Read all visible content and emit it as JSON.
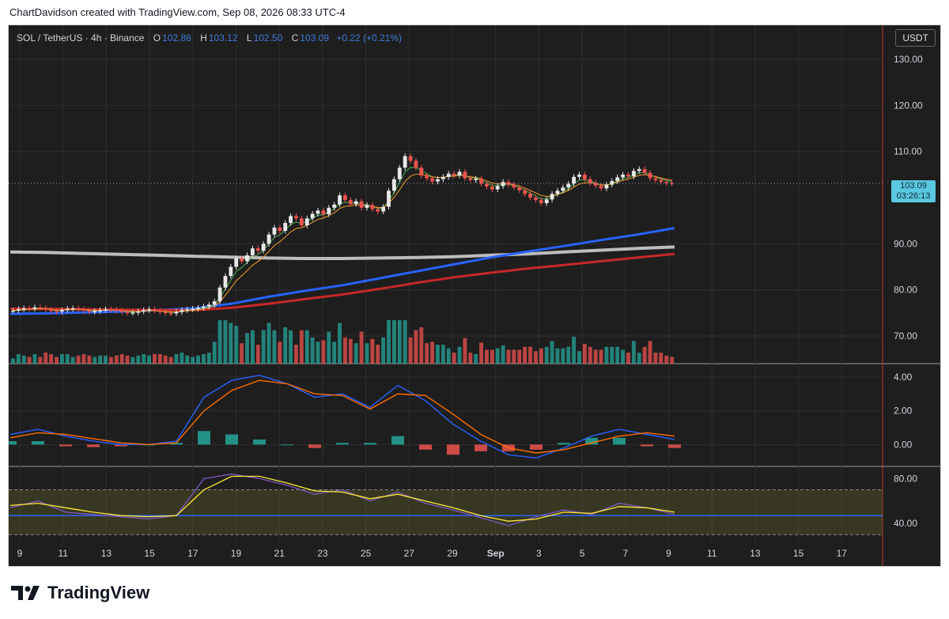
{
  "header": {
    "attribution": "ChartDavidson created with TradingView.com, Sep 08, 2026 08:33 UTC-4"
  },
  "legend": {
    "symbol": "SOL / TetherUS · 4h · Binance",
    "open_label": "O",
    "open": "102.88",
    "high_label": "H",
    "high": "103.12",
    "low_label": "L",
    "low": "102.50",
    "close_label": "C",
    "close": "103.09",
    "change": "+0.22 (+0.21%)"
  },
  "price_scale": {
    "unit": "USDT",
    "last_price": "103.09",
    "countdown": "03:26:13"
  },
  "brand": {
    "name": "TradingView"
  },
  "colors": {
    "background": "#1e1e1e",
    "up_candle": "#e8e8e8",
    "down_candle": "#ef5350",
    "ema_fast": "#f0a030",
    "ema_mid": "#4caf50",
    "ma_blue": "#2962ff",
    "ma_red": "#c62828",
    "ma_white": "#bdbdbd",
    "macd_line": "#2962ff",
    "signal_line": "#ff6d00",
    "rsi_line": "#7e57c2",
    "rsi_ma": "#ffeb3b",
    "volume_up": "#26a69a",
    "volume_down": "#ef5350",
    "accent_price": "#5ac8e0"
  },
  "chart_data": {
    "type": "line",
    "x_ticks": [
      "9",
      "11",
      "13",
      "15",
      "17",
      "19",
      "21",
      "23",
      "25",
      "27",
      "29",
      "Sep",
      "3",
      "5",
      "7",
      "9",
      "11",
      "13",
      "15",
      "17"
    ],
    "price_pane": {
      "y_ticks": [
        "130.00",
        "120.00",
        "110.00",
        "90.00",
        "80.00",
        "70.00"
      ],
      "ylim": [
        64,
        136
      ],
      "closes": [
        75.5,
        75.8,
        76.0,
        75.9,
        76.2,
        76.1,
        75.7,
        75.4,
        75.3,
        75.6,
        75.9,
        76.0,
        75.8,
        75.5,
        75.3,
        75.4,
        75.6,
        75.8,
        75.7,
        75.5,
        75.2,
        75.0,
        75.1,
        75.3,
        75.6,
        75.8,
        75.5,
        75.2,
        75.0,
        74.9,
        75.2,
        75.6,
        75.8,
        75.9,
        76.1,
        76.4,
        76.8,
        77.5,
        80.5,
        83.0,
        85.0,
        86.8,
        86.2,
        87.5,
        89.0,
        88.5,
        90.0,
        92.0,
        93.5,
        92.8,
        94.5,
        96.0,
        95.5,
        94.0,
        95.5,
        96.5,
        97.2,
        96.4,
        97.8,
        98.5,
        100.5,
        99.5,
        98.6,
        99.2,
        97.8,
        98.4,
        97.5,
        97.0,
        98.0,
        101.5,
        104.0,
        106.5,
        109.0,
        108.0,
        106.5,
        104.8,
        104.2,
        103.5,
        104.0,
        104.5,
        105.2,
        104.8,
        105.6,
        104.2,
        103.8,
        104.1,
        103.0,
        102.4,
        101.8,
        102.5,
        103.4,
        102.8,
        102.2,
        101.6,
        100.8,
        100.0,
        99.5,
        98.8,
        99.6,
        100.8,
        101.5,
        102.2,
        103.0,
        104.5,
        105.0,
        104.0,
        103.2,
        102.6,
        102.0,
        102.8,
        103.6,
        104.4,
        105.0,
        104.6,
        105.8,
        106.2,
        105.4,
        104.2,
        103.8,
        103.4,
        103.2,
        103.09
      ],
      "moving_averages": [
        {
          "values": [
            88.2,
            88.1,
            87.9,
            87.7,
            87.5,
            87.3,
            87.1,
            86.9,
            86.8,
            86.8,
            86.9,
            87.0,
            87.2,
            87.5,
            87.8,
            88.2,
            88.6,
            89.0,
            89.3
          ]
        },
        {
          "values": [
            74.8,
            74.9,
            75.1,
            75.3,
            75.6,
            76.0,
            77.0,
            78.5,
            79.8,
            81.0,
            82.5,
            84.0,
            85.5,
            87.0,
            88.3,
            89.5,
            90.8,
            92.0,
            93.4
          ]
        },
        {
          "values": [
            75.9,
            75.9,
            75.8,
            75.7,
            75.6,
            75.6,
            76.1,
            77.0,
            78.0,
            79.0,
            80.2,
            81.5,
            82.7,
            83.7,
            84.6,
            85.4,
            86.2,
            87.0,
            87.8
          ]
        }
      ]
    },
    "macd_pane": {
      "y_ticks": [
        "4.00",
        "2.00",
        "0.00"
      ],
      "ylim": [
        -1.2,
        4.6
      ],
      "macd": [
        0.6,
        0.9,
        0.5,
        0.2,
        0.0,
        0.0,
        0.2,
        2.8,
        3.8,
        4.1,
        3.6,
        2.8,
        3.0,
        2.2,
        3.5,
        2.6,
        1.2,
        0.2,
        -0.6,
        -0.8,
        -0.2,
        0.5,
        0.9,
        0.6,
        0.3
      ],
      "signal": [
        0.4,
        0.7,
        0.6,
        0.35,
        0.1,
        0.0,
        0.1,
        2.0,
        3.2,
        3.8,
        3.6,
        3.0,
        2.9,
        2.1,
        3.0,
        2.9,
        1.8,
        0.6,
        -0.2,
        -0.5,
        -0.3,
        0.1,
        0.5,
        0.7,
        0.5
      ]
    },
    "rsi_pane": {
      "y_ticks": [
        "80.00",
        "40.00"
      ],
      "ylim": [
        26,
        88
      ],
      "rsi": [
        54,
        60,
        50,
        48,
        46,
        44,
        47,
        80,
        84,
        80,
        74,
        66,
        70,
        60,
        68,
        58,
        52,
        45,
        38,
        46,
        52,
        48,
        58,
        54,
        48
      ],
      "rsi_ma": [
        56,
        58,
        54,
        50,
        47,
        46,
        47,
        70,
        82,
        82,
        76,
        69,
        68,
        62,
        66,
        60,
        54,
        47,
        42,
        44,
        50,
        49,
        55,
        54,
        50
      ]
    }
  }
}
